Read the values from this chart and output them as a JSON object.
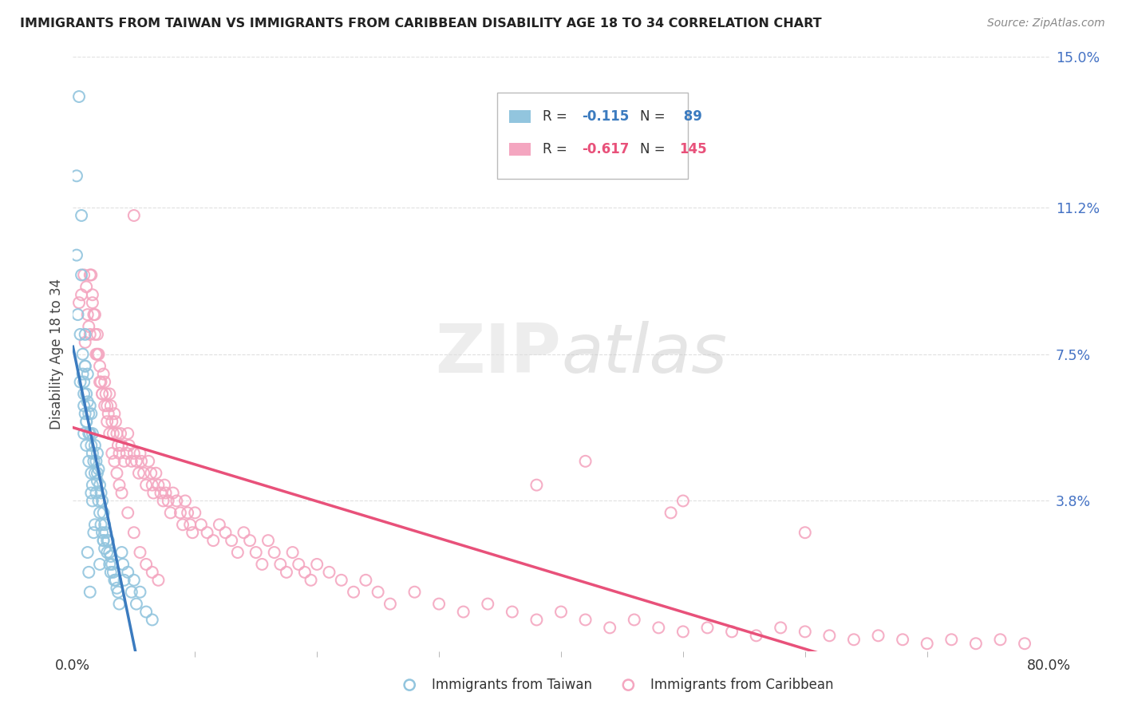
{
  "title": "IMMIGRANTS FROM TAIWAN VS IMMIGRANTS FROM CARIBBEAN DISABILITY AGE 18 TO 34 CORRELATION CHART",
  "source": "Source: ZipAtlas.com",
  "ylabel": "Disability Age 18 to 34",
  "xlim": [
    0.0,
    0.8
  ],
  "ylim": [
    0.0,
    0.15
  ],
  "xticks": [
    0.0,
    0.8
  ],
  "xticklabels": [
    "0.0%",
    "80.0%"
  ],
  "yticks": [
    0.038,
    0.075,
    0.112,
    0.15
  ],
  "yticklabels": [
    "3.8%",
    "7.5%",
    "11.2%",
    "15.0%"
  ],
  "taiwan_R": -0.115,
  "taiwan_N": 89,
  "caribbean_R": -0.617,
  "caribbean_N": 145,
  "taiwan_color": "#92c5de",
  "caribbean_color": "#f4a6c0",
  "taiwan_line_color": "#3b7bbf",
  "caribbean_line_color": "#e8517a",
  "dashed_line_color": "#a8cfe0",
  "taiwan_scatter": {
    "x": [
      0.003,
      0.003,
      0.004,
      0.005,
      0.006,
      0.006,
      0.007,
      0.007,
      0.008,
      0.008,
      0.009,
      0.009,
      0.009,
      0.01,
      0.01,
      0.01,
      0.011,
      0.011,
      0.011,
      0.012,
      0.012,
      0.013,
      0.013,
      0.013,
      0.014,
      0.014,
      0.015,
      0.015,
      0.015,
      0.016,
      0.016,
      0.016,
      0.017,
      0.018,
      0.018,
      0.019,
      0.019,
      0.02,
      0.02,
      0.021,
      0.021,
      0.022,
      0.022,
      0.023,
      0.023,
      0.024,
      0.024,
      0.025,
      0.025,
      0.026,
      0.026,
      0.027,
      0.028,
      0.028,
      0.029,
      0.03,
      0.03,
      0.031,
      0.031,
      0.032,
      0.033,
      0.034,
      0.035,
      0.036,
      0.037,
      0.038,
      0.04,
      0.041,
      0.042,
      0.045,
      0.048,
      0.05,
      0.052,
      0.055,
      0.06,
      0.065,
      0.009,
      0.01,
      0.011,
      0.012,
      0.013,
      0.014,
      0.015,
      0.016,
      0.017,
      0.018,
      0.02,
      0.022,
      0.025
    ],
    "y": [
      0.12,
      0.1,
      0.085,
      0.14,
      0.068,
      0.08,
      0.11,
      0.095,
      0.075,
      0.07,
      0.065,
      0.062,
      0.055,
      0.08,
      0.072,
      0.06,
      0.065,
      0.058,
      0.052,
      0.07,
      0.063,
      0.055,
      0.06,
      0.048,
      0.062,
      0.055,
      0.06,
      0.052,
      0.045,
      0.055,
      0.05,
      0.042,
      0.048,
      0.052,
      0.045,
      0.048,
      0.04,
      0.05,
      0.043,
      0.046,
      0.038,
      0.042,
      0.035,
      0.04,
      0.032,
      0.038,
      0.03,
      0.035,
      0.028,
      0.032,
      0.026,
      0.03,
      0.028,
      0.025,
      0.028,
      0.025,
      0.022,
      0.024,
      0.02,
      0.022,
      0.02,
      0.018,
      0.018,
      0.016,
      0.015,
      0.012,
      0.025,
      0.022,
      0.018,
      0.02,
      0.015,
      0.018,
      0.012,
      0.015,
      0.01,
      0.008,
      0.068,
      0.072,
      0.058,
      0.025,
      0.02,
      0.015,
      0.04,
      0.038,
      0.03,
      0.032,
      0.045,
      0.022,
      0.028
    ]
  },
  "caribbean_scatter": {
    "x": [
      0.005,
      0.007,
      0.009,
      0.01,
      0.011,
      0.012,
      0.013,
      0.014,
      0.015,
      0.016,
      0.017,
      0.018,
      0.019,
      0.02,
      0.021,
      0.022,
      0.023,
      0.024,
      0.025,
      0.026,
      0.027,
      0.028,
      0.029,
      0.03,
      0.031,
      0.032,
      0.033,
      0.034,
      0.035,
      0.036,
      0.037,
      0.038,
      0.039,
      0.04,
      0.042,
      0.044,
      0.045,
      0.046,
      0.048,
      0.05,
      0.052,
      0.054,
      0.055,
      0.056,
      0.058,
      0.06,
      0.062,
      0.064,
      0.065,
      0.066,
      0.068,
      0.07,
      0.072,
      0.074,
      0.075,
      0.076,
      0.078,
      0.08,
      0.082,
      0.085,
      0.088,
      0.09,
      0.092,
      0.094,
      0.096,
      0.098,
      0.1,
      0.105,
      0.11,
      0.115,
      0.12,
      0.125,
      0.13,
      0.135,
      0.14,
      0.145,
      0.15,
      0.155,
      0.16,
      0.165,
      0.17,
      0.175,
      0.18,
      0.185,
      0.19,
      0.195,
      0.2,
      0.21,
      0.22,
      0.23,
      0.24,
      0.25,
      0.26,
      0.28,
      0.3,
      0.32,
      0.34,
      0.36,
      0.38,
      0.4,
      0.42,
      0.44,
      0.46,
      0.48,
      0.5,
      0.52,
      0.54,
      0.56,
      0.58,
      0.6,
      0.62,
      0.64,
      0.66,
      0.68,
      0.7,
      0.72,
      0.74,
      0.76,
      0.78,
      0.014,
      0.016,
      0.018,
      0.02,
      0.022,
      0.024,
      0.026,
      0.028,
      0.03,
      0.032,
      0.034,
      0.036,
      0.038,
      0.04,
      0.045,
      0.05,
      0.055,
      0.06,
      0.065,
      0.07,
      0.5,
      0.38,
      0.49,
      0.6,
      0.42,
      0.05
    ],
    "y": [
      0.088,
      0.09,
      0.095,
      0.078,
      0.092,
      0.085,
      0.082,
      0.08,
      0.095,
      0.088,
      0.085,
      0.08,
      0.075,
      0.08,
      0.075,
      0.072,
      0.068,
      0.065,
      0.07,
      0.068,
      0.065,
      0.062,
      0.06,
      0.065,
      0.062,
      0.058,
      0.055,
      0.06,
      0.058,
      0.055,
      0.052,
      0.05,
      0.055,
      0.052,
      0.048,
      0.05,
      0.055,
      0.052,
      0.048,
      0.05,
      0.048,
      0.045,
      0.05,
      0.048,
      0.045,
      0.042,
      0.048,
      0.045,
      0.042,
      0.04,
      0.045,
      0.042,
      0.04,
      0.038,
      0.042,
      0.04,
      0.038,
      0.035,
      0.04,
      0.038,
      0.035,
      0.032,
      0.038,
      0.035,
      0.032,
      0.03,
      0.035,
      0.032,
      0.03,
      0.028,
      0.032,
      0.03,
      0.028,
      0.025,
      0.03,
      0.028,
      0.025,
      0.022,
      0.028,
      0.025,
      0.022,
      0.02,
      0.025,
      0.022,
      0.02,
      0.018,
      0.022,
      0.02,
      0.018,
      0.015,
      0.018,
      0.015,
      0.012,
      0.015,
      0.012,
      0.01,
      0.012,
      0.01,
      0.008,
      0.01,
      0.008,
      0.006,
      0.008,
      0.006,
      0.005,
      0.006,
      0.005,
      0.004,
      0.006,
      0.005,
      0.004,
      0.003,
      0.004,
      0.003,
      0.002,
      0.003,
      0.002,
      0.003,
      0.002,
      0.095,
      0.09,
      0.085,
      0.075,
      0.068,
      0.065,
      0.062,
      0.058,
      0.055,
      0.05,
      0.048,
      0.045,
      0.042,
      0.04,
      0.035,
      0.03,
      0.025,
      0.022,
      0.02,
      0.018,
      0.038,
      0.042,
      0.035,
      0.03,
      0.048,
      0.11
    ]
  },
  "watermark_zip": "ZIP",
  "watermark_atlas": "atlas",
  "background_color": "#ffffff",
  "grid_color": "#e0e0e0",
  "tick_color": "#4472c4"
}
